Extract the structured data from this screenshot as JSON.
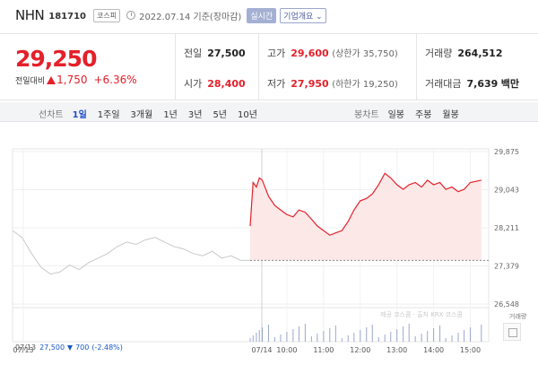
{
  "header": {
    "name": "NHN",
    "code": "181710",
    "market": "코스피",
    "basis": "2022.07.14 기준(장마감)",
    "realtime": "실시간",
    "company_info": "기업개요 ⌄"
  },
  "quote": {
    "price": "29,250",
    "change_label": "전일대비",
    "change": "1,750",
    "change_pct": "+6.36%"
  },
  "stats": {
    "prev_label": "전일",
    "prev": "27,500",
    "high_label": "고가",
    "high": "29,600",
    "upper_limit": "(상한가 35,750)",
    "volume_label": "거래량",
    "volume": "264,512",
    "open_label": "시가",
    "open": "28,400",
    "low_label": "저가",
    "low": "27,950",
    "lower_limit": "(하한가 19,250)",
    "value_label": "거래대금",
    "value": "7,639",
    "value_unit": "백만"
  },
  "tabs": {
    "line_label": "선차트",
    "line": [
      "1일",
      "1주일",
      "3개월",
      "1년",
      "3년",
      "5년",
      "10년"
    ],
    "candle_label": "봉차트",
    "candle": [
      "일봉",
      "주봉",
      "월봉"
    ]
  },
  "chart_data": {
    "type": "line",
    "y_ticks": [
      "29,875",
      "29,043",
      "28,211",
      "27,379",
      "26,548"
    ],
    "ylim": [
      26548,
      29875
    ],
    "x_ticks": [
      "07/13",
      "07/14",
      "10:00",
      "11:00",
      "12:00",
      "13:00",
      "14:00",
      "15:00"
    ],
    "prev_day_series": [
      [
        0,
        28150
      ],
      [
        0.04,
        28000
      ],
      [
        0.08,
        27650
      ],
      [
        0.12,
        27350
      ],
      [
        0.16,
        27200
      ],
      [
        0.2,
        27250
      ],
      [
        0.24,
        27400
      ],
      [
        0.28,
        27300
      ],
      [
        0.32,
        27450
      ],
      [
        0.36,
        27550
      ],
      [
        0.4,
        27650
      ],
      [
        0.44,
        27800
      ],
      [
        0.48,
        27900
      ],
      [
        0.52,
        27850
      ],
      [
        0.56,
        27950
      ],
      [
        0.6,
        28000
      ],
      [
        0.64,
        27900
      ],
      [
        0.68,
        27800
      ],
      [
        0.72,
        27750
      ],
      [
        0.76,
        27650
      ],
      [
        0.8,
        27600
      ],
      [
        0.84,
        27700
      ],
      [
        0.88,
        27550
      ],
      [
        0.92,
        27600
      ],
      [
        0.96,
        27500
      ],
      [
        1.0,
        27500
      ]
    ],
    "today_series": [
      [
        9.0,
        28250
      ],
      [
        9.08,
        29200
      ],
      [
        9.17,
        29100
      ],
      [
        9.25,
        29300
      ],
      [
        9.33,
        29250
      ],
      [
        9.5,
        28900
      ],
      [
        9.67,
        28700
      ],
      [
        9.83,
        28600
      ],
      [
        10.0,
        28500
      ],
      [
        10.17,
        28450
      ],
      [
        10.33,
        28600
      ],
      [
        10.5,
        28550
      ],
      [
        10.67,
        28400
      ],
      [
        10.83,
        28250
      ],
      [
        11.0,
        28150
      ],
      [
        11.17,
        28050
      ],
      [
        11.33,
        28100
      ],
      [
        11.5,
        28150
      ],
      [
        11.67,
        28350
      ],
      [
        11.83,
        28600
      ],
      [
        12.0,
        28800
      ],
      [
        12.17,
        28850
      ],
      [
        12.33,
        28950
      ],
      [
        12.5,
        29150
      ],
      [
        12.67,
        29400
      ],
      [
        12.83,
        29300
      ],
      [
        13.0,
        29150
      ],
      [
        13.17,
        29050
      ],
      [
        13.33,
        29150
      ],
      [
        13.5,
        29200
      ],
      [
        13.67,
        29100
      ],
      [
        13.83,
        29250
      ],
      [
        14.0,
        29150
      ],
      [
        14.17,
        29200
      ],
      [
        14.33,
        29050
      ],
      [
        14.5,
        29100
      ],
      [
        14.67,
        29000
      ],
      [
        14.83,
        29050
      ],
      [
        15.0,
        29200
      ],
      [
        15.3,
        29250
      ]
    ],
    "prev_close": 27500,
    "volume_label": "거래량",
    "watermark": "제공 코스콤 · 출처 KRX 코스콤"
  },
  "footer": {
    "prev_date": "07/13",
    "prev_close": "27,500",
    "prev_change": "700",
    "prev_pct": "(-2.48%)"
  },
  "colors": {
    "up": "#e4202a",
    "down": "#1857c6",
    "prev_line": "#c9c9c9",
    "fill": "#fde8e8"
  }
}
